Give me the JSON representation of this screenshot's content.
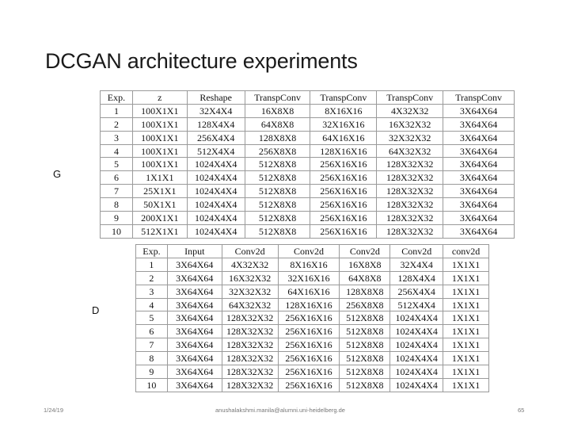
{
  "slide": {
    "title": "DCGAN architecture experiments",
    "g_label": "G",
    "d_label": "D",
    "footer_date": "1/24/19",
    "footer_email": "anushalakshmi.manila@alumni.uni-heidelberg.de",
    "footer_page": "65"
  },
  "g_table": {
    "headers": [
      "Exp.",
      "z",
      "Reshape",
      "TranspConv",
      "TranspConv",
      "TranspConv",
      "TranspConv"
    ],
    "rows": [
      [
        "1",
        "100X1X1",
        "32X4X4",
        "16X8X8",
        "8X16X16",
        "4X32X32",
        "3X64X64"
      ],
      [
        "2",
        "100X1X1",
        "128X4X4",
        "64X8X8",
        "32X16X16",
        "16X32X32",
        "3X64X64"
      ],
      [
        "3",
        "100X1X1",
        "256X4X4",
        "128X8X8",
        "64X16X16",
        "32X32X32",
        "3X64X64"
      ],
      [
        "4",
        "100X1X1",
        "512X4X4",
        "256X8X8",
        "128X16X16",
        "64X32X32",
        "3X64X64"
      ],
      [
        "5",
        "100X1X1",
        "1024X4X4",
        "512X8X8",
        "256X16X16",
        "128X32X32",
        "3X64X64"
      ],
      [
        "6",
        "1X1X1",
        "1024X4X4",
        "512X8X8",
        "256X16X16",
        "128X32X32",
        "3X64X64"
      ],
      [
        "7",
        "25X1X1",
        "1024X4X4",
        "512X8X8",
        "256X16X16",
        "128X32X32",
        "3X64X64"
      ],
      [
        "8",
        "50X1X1",
        "1024X4X4",
        "512X8X8",
        "256X16X16",
        "128X32X32",
        "3X64X64"
      ],
      [
        "9",
        "200X1X1",
        "1024X4X4",
        "512X8X8",
        "256X16X16",
        "128X32X32",
        "3X64X64"
      ],
      [
        "10",
        "512X1X1",
        "1024X4X4",
        "512X8X8",
        "256X16X16",
        "128X32X32",
        "3X64X64"
      ]
    ]
  },
  "d_table": {
    "headers": [
      "Exp.",
      "Input",
      "Conv2d",
      "Conv2d",
      "Conv2d",
      "Conv2d",
      "conv2d"
    ],
    "rows": [
      [
        "1",
        "3X64X64",
        "4X32X32",
        "8X16X16",
        "16X8X8",
        "32X4X4",
        "1X1X1"
      ],
      [
        "2",
        "3X64X64",
        "16X32X32",
        "32X16X16",
        "64X8X8",
        "128X4X4",
        "1X1X1"
      ],
      [
        "3",
        "3X64X64",
        "32X32X32",
        "64X16X16",
        "128X8X8",
        "256X4X4",
        "1X1X1"
      ],
      [
        "4",
        "3X64X64",
        "64X32X32",
        "128X16X16",
        "256X8X8",
        "512X4X4",
        "1X1X1"
      ],
      [
        "5",
        "3X64X64",
        "128X32X32",
        "256X16X16",
        "512X8X8",
        "1024X4X4",
        "1X1X1"
      ],
      [
        "6",
        "3X64X64",
        "128X32X32",
        "256X16X16",
        "512X8X8",
        "1024X4X4",
        "1X1X1"
      ],
      [
        "7",
        "3X64X64",
        "128X32X32",
        "256X16X16",
        "512X8X8",
        "1024X4X4",
        "1X1X1"
      ],
      [
        "8",
        "3X64X64",
        "128X32X32",
        "256X16X16",
        "512X8X8",
        "1024X4X4",
        "1X1X1"
      ],
      [
        "9",
        "3X64X64",
        "128X32X32",
        "256X16X16",
        "512X8X8",
        "1024X4X4",
        "1X1X1"
      ],
      [
        "10",
        "3X64X64",
        "128X32X32",
        "256X16X16",
        "512X8X8",
        "1024X4X4",
        "1X1X1"
      ]
    ]
  }
}
